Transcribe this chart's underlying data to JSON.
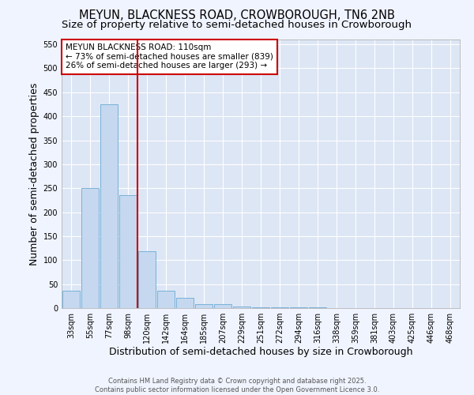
{
  "title": "MEYUN, BLACKNESS ROAD, CROWBOROUGH, TN6 2NB",
  "subtitle": "Size of property relative to semi-detached houses in Crowborough",
  "xlabel": "Distribution of semi-detached houses by size in Crowborough",
  "ylabel": "Number of semi-detached properties",
  "bar_labels": [
    "33sqm",
    "55sqm",
    "77sqm",
    "98sqm",
    "120sqm",
    "142sqm",
    "164sqm",
    "185sqm",
    "207sqm",
    "229sqm",
    "251sqm",
    "272sqm",
    "294sqm",
    "316sqm",
    "338sqm",
    "359sqm",
    "381sqm",
    "403sqm",
    "425sqm",
    "446sqm",
    "468sqm"
  ],
  "bar_values": [
    37,
    251,
    425,
    235,
    118,
    37,
    22,
    9,
    9,
    4,
    2,
    2,
    1,
    1,
    0,
    0,
    0,
    0,
    0,
    0,
    0
  ],
  "bar_color": "#c5d8f0",
  "bar_edge_color": "#6aaad4",
  "red_line_x": 3.5,
  "red_line_color": "#cc0000",
  "annotation_text": "MEYUN BLACKNESS ROAD: 110sqm\n← 73% of semi-detached houses are smaller (839)\n26% of semi-detached houses are larger (293) →",
  "annotation_box_color": "#ffffff",
  "annotation_box_edge": "#cc0000",
  "ylim": [
    0,
    560
  ],
  "yticks": [
    0,
    50,
    100,
    150,
    200,
    250,
    300,
    350,
    400,
    450,
    500,
    550
  ],
  "background_color": "#dde6f5",
  "grid_color": "#ffffff",
  "fig_background": "#f0f4ff",
  "footer_text": "Contains HM Land Registry data © Crown copyright and database right 2025.\nContains public sector information licensed under the Open Government Licence 3.0.",
  "title_fontsize": 10.5,
  "subtitle_fontsize": 9.5,
  "axis_label_fontsize": 9,
  "tick_fontsize": 7,
  "annotation_fontsize": 7.5,
  "footer_fontsize": 6
}
